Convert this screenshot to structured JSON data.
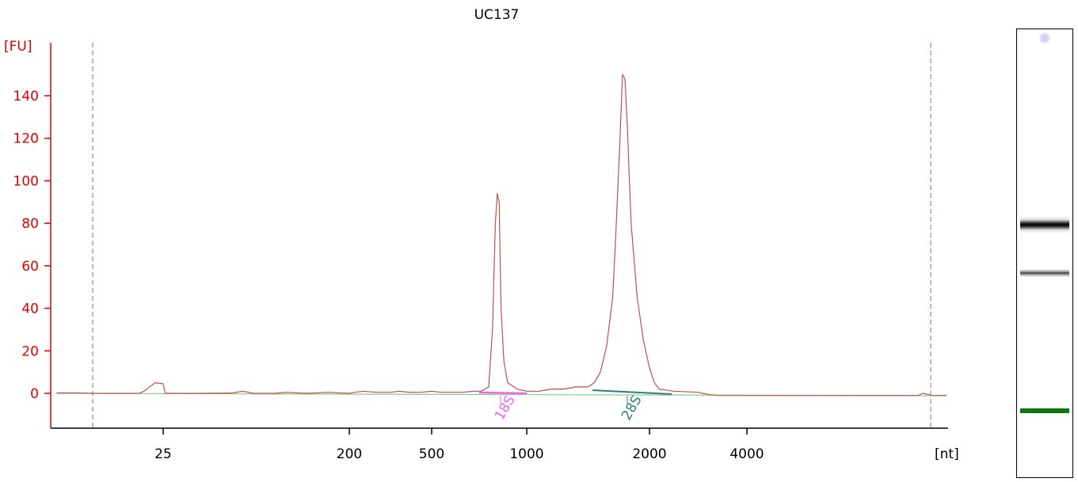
{
  "chart_data": {
    "type": "line",
    "title": "UC137",
    "ylabel": "[FU]",
    "xlabel": "[nt]",
    "ylim": [
      -17,
      163
    ],
    "yticks": [
      0,
      20,
      40,
      60,
      80,
      100,
      120,
      140
    ],
    "xticks": [
      {
        "label": "25",
        "pos": 25
      },
      {
        "label": "200",
        "pos": 200
      },
      {
        "label": "500",
        "pos": 500
      },
      {
        "label": "1000",
        "pos": 1000
      },
      {
        "label": "2000",
        "pos": 2000
      },
      {
        "label": "4000",
        "pos": 4000
      }
    ],
    "markers": [
      {
        "label": "18S",
        "nt": 850,
        "color": "#ee66ee"
      },
      {
        "label": "28S",
        "nt": 1800,
        "color": "#2f7f7f"
      }
    ],
    "series": [
      {
        "color": "#c0504d",
        "points": [
          [
            -14,
            0.2
          ],
          [
            -6,
            0.2
          ],
          [
            0,
            0
          ],
          [
            2,
            0
          ],
          [
            9,
            0
          ],
          [
            16,
            0
          ],
          [
            18,
            1
          ],
          [
            22,
            5
          ],
          [
            25,
            4.5
          ],
          [
            27,
            0
          ],
          [
            60,
            0
          ],
          [
            90,
            0.2
          ],
          [
            100,
            1
          ],
          [
            110,
            0
          ],
          [
            130,
            0
          ],
          [
            140,
            0.5
          ],
          [
            160,
            0
          ],
          [
            180,
            0.5
          ],
          [
            200,
            0
          ],
          [
            220,
            0.5
          ],
          [
            250,
            1
          ],
          [
            300,
            0.5
          ],
          [
            350,
            0.5
          ],
          [
            380,
            1
          ],
          [
            420,
            0.5
          ],
          [
            460,
            0.5
          ],
          [
            500,
            1
          ],
          [
            550,
            0.5
          ],
          [
            600,
            0.5
          ],
          [
            660,
            0.5
          ],
          [
            720,
            1
          ],
          [
            760,
            1
          ],
          [
            800,
            3
          ],
          [
            820,
            30
          ],
          [
            835,
            80
          ],
          [
            845,
            94
          ],
          [
            855,
            90
          ],
          [
            865,
            40
          ],
          [
            880,
            15
          ],
          [
            900,
            5
          ],
          [
            950,
            2
          ],
          [
            1000,
            1
          ],
          [
            1100,
            1
          ],
          [
            1200,
            2
          ],
          [
            1300,
            2
          ],
          [
            1400,
            3
          ],
          [
            1500,
            3
          ],
          [
            1550,
            5
          ],
          [
            1600,
            10
          ],
          [
            1650,
            22
          ],
          [
            1700,
            45
          ],
          [
            1730,
            80
          ],
          [
            1760,
            120
          ],
          [
            1780,
            150
          ],
          [
            1800,
            148
          ],
          [
            1820,
            125
          ],
          [
            1850,
            80
          ],
          [
            1900,
            45
          ],
          [
            1950,
            25
          ],
          [
            2000,
            12
          ],
          [
            2100,
            5
          ],
          [
            2200,
            2
          ],
          [
            2500,
            1
          ],
          [
            3000,
            0.5
          ],
          [
            3200,
            -0.5
          ],
          [
            3400,
            -1
          ],
          [
            4000,
            -1
          ],
          [
            5000,
            -1
          ],
          [
            6000,
            -1
          ],
          [
            7000,
            -1
          ],
          [
            8000,
            -1
          ],
          [
            10000,
            -1
          ],
          [
            11200,
            -1
          ],
          [
            11400,
            0
          ],
          [
            11800,
            -1
          ],
          [
            12400,
            -1
          ]
        ]
      }
    ]
  }
}
